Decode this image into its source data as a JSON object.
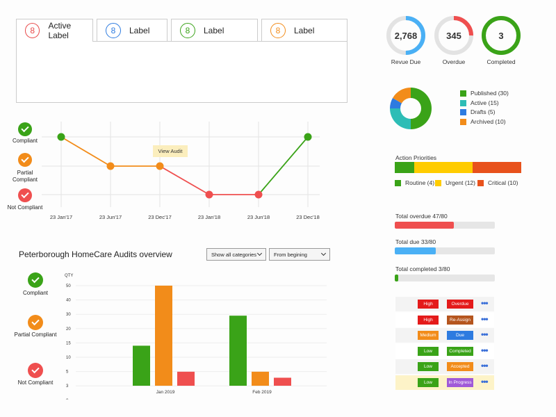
{
  "tabs": [
    {
      "count": "8",
      "label": "Active Label",
      "color": "#e84a4a"
    },
    {
      "count": "8",
      "label": "Label",
      "color": "#2d7be0"
    },
    {
      "count": "8",
      "label": "Label",
      "color": "#3aa318"
    },
    {
      "count": "8",
      "label": "Label",
      "color": "#f28c1a"
    }
  ],
  "rings": [
    {
      "value": "2,768",
      "label": "Revue Due",
      "color": "#4ab0f5",
      "fraction": 0.5
    },
    {
      "value": "345",
      "label": "Overdue",
      "color": "#ef4f4f",
      "fraction": 0.25
    },
    {
      "value": "3",
      "label": "Completed",
      "color": "#3aa318",
      "fraction": 1.0
    }
  ],
  "donut": {
    "legend": [
      {
        "label": "Published (30)",
        "value": 30,
        "color": "#3aa318"
      },
      {
        "label": "Active (15)",
        "value": 15,
        "color": "#2dbdb6"
      },
      {
        "label": "Drafts (5)",
        "value": 5,
        "color": "#2d7be0"
      },
      {
        "label": "Archived (10)",
        "value": 10,
        "color": "#f28c1a"
      }
    ]
  },
  "priorities": {
    "title": "Action Priorities",
    "items": [
      {
        "label": "Routine (4)",
        "value": 4,
        "color": "#3aa318"
      },
      {
        "label": "Urgent (12)",
        "value": 12,
        "color": "#ffcc00"
      },
      {
        "label": "Critical (10)",
        "value": 10,
        "color": "#e8521c"
      }
    ]
  },
  "progress": [
    {
      "title": "Total overdue 47/80",
      "fraction": 0.5875,
      "color": "#ef4f4f"
    },
    {
      "title": "Total due 33/80",
      "fraction": 0.4125,
      "color": "#4ab0f5"
    },
    {
      "title": "Total completed 3/80",
      "fraction": 0.0375,
      "color": "#3aa318"
    }
  ],
  "actions": [
    {
      "priority": "High",
      "status": "Overdue",
      "pcolor": "#e41a1a",
      "scolor": "#e41a1a",
      "bg": "#f3f3f3"
    },
    {
      "priority": "High",
      "status": "Re-Assign",
      "pcolor": "#e41a1a",
      "scolor": "#b5551e",
      "bg": "#ffffff"
    },
    {
      "priority": "Medium",
      "status": "Due",
      "pcolor": "#f28c1a",
      "scolor": "#2d7be0",
      "bg": "#f3f3f3"
    },
    {
      "priority": "Low",
      "status": "Completed",
      "pcolor": "#3aa318",
      "scolor": "#3aa318",
      "bg": "#ffffff"
    },
    {
      "priority": "Low",
      "status": "Accepted",
      "pcolor": "#3aa318",
      "scolor": "#f28c1a",
      "bg": "#f3f3f3"
    },
    {
      "priority": "Low",
      "status": "In Progress",
      "pcolor": "#3aa318",
      "scolor": "#a05ad8",
      "bg": "#fdf3c8"
    }
  ],
  "more_icon": "•••",
  "status_legend": [
    {
      "label": "Compliant",
      "color": "#3aa318"
    },
    {
      "label": "Partial Compliant",
      "color": "#f28c1a"
    },
    {
      "label": "Not  Compliant",
      "color": "#ef4f4f"
    }
  ],
  "line_chart": {
    "tooltip": "View Audit",
    "dates": [
      "23 Jan'17",
      "23 Jun'17",
      "23 Dec'17",
      "23 Jan'18",
      "23 Jun'18",
      "23 Dec'18"
    ],
    "levels": [
      2,
      1,
      1,
      0,
      0,
      2
    ],
    "colors": {
      "compliant": "#3aa318",
      "partial": "#f28c1a",
      "not": "#ef4f4f"
    }
  },
  "overview": {
    "title": "Peterborough HomeCare Audits overview",
    "filter1": "Show all categories",
    "filter2": "From begining"
  },
  "chart_data": {
    "type": "bar",
    "title": "",
    "ylabel": "QTY",
    "yticks": [
      0,
      3,
      5,
      10,
      15,
      20,
      30,
      40,
      50
    ],
    "categories": [
      "Jan 2019",
      "Feb 2019"
    ],
    "series": [
      {
        "name": "Compliant",
        "color": "#3aa318",
        "values": [
          20,
          35
        ]
      },
      {
        "name": "Partial Compliant",
        "color": "#f28c1a",
        "values": [
          50,
          7
        ]
      },
      {
        "name": "Not  Compliant",
        "color": "#ef4f4f",
        "values": [
          7,
          4
        ]
      }
    ]
  }
}
